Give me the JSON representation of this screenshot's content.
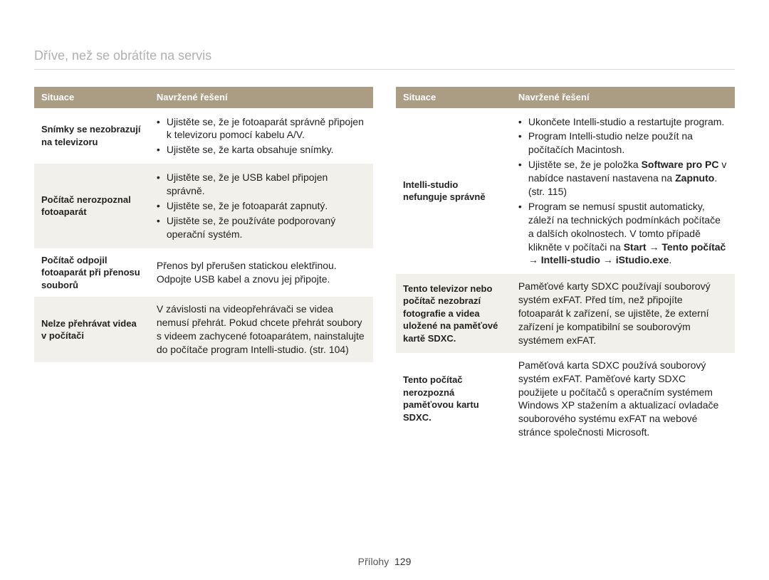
{
  "title": "Dříve, než se obrátíte na servis",
  "footer": {
    "label": "Přílohy",
    "page": "129"
  },
  "header": {
    "situation": "Situace",
    "solution": "Navržené řešení"
  },
  "left": {
    "rows": [
      {
        "situation": "Snímky se nezobrazují na televizoru",
        "type": "list",
        "items": [
          "Ujistěte se, že je fotoaparát správně připojen k televizoru pomocí kabelu A/V.",
          "Ujistěte se, že karta obsahuje snímky."
        ]
      },
      {
        "situation": "Počítač nerozpoznal fotoaparát",
        "type": "list",
        "items": [
          "Ujistěte se, že je USB kabel připojen správně.",
          "Ujistěte se, že je fotoaparát zapnutý.",
          "Ujistěte se, že používáte podporovaný operační systém."
        ]
      },
      {
        "situation": "Počítač odpojil fotoaparát při přenosu souborů",
        "type": "text",
        "text": "Přenos byl přerušen statickou elektřinou. Odpojte USB kabel a znovu jej připojte."
      },
      {
        "situation": "Nelze přehrávat videa v počítači",
        "type": "text",
        "text": "V závislosti na videopřehrávači se videa nemusí přehrát. Pokud chcete přehrát soubory s videem zachycené fotoaparátem, nainstalujte do počítače program Intelli-studio. (str. 104)"
      }
    ]
  },
  "right": {
    "rows": [
      {
        "situation": "Intelli-studio nefunguje správně",
        "type": "list-html",
        "items": [
          "Ukončete Intelli-studio a restartujte program.",
          "Program Intelli-studio nelze použít na počítačích Macintosh.",
          "Ujistěte se, že je položka <b>Software pro PC</b> v nabídce nastavení nastavena na <b>Zapnuto</b>. (str. 115)",
          "Program se nemusí spustit automaticky, záleží na technických podmínkách počítače a dalších okolnostech. V tomto případě klikněte v počítači na <b>Start</b> → <b>Tento počítač</b> → <b>Intelli-studio</b> → <b>iStudio.exe</b>."
        ]
      },
      {
        "situation": "Tento televizor nebo počítač nezobrazí fotografie a videa uložené na paměťové kartě SDXC.",
        "type": "text",
        "text": "Paměťové karty SDXC používají souborový systém exFAT. Před tím, než připojíte fotoaparát k zařízení, se ujistěte, že externí zařízení je kompatibilní se souborovým systémem exFAT."
      },
      {
        "situation": "Tento počítač nerozpozná paměťovou kartu SDXC.",
        "type": "text",
        "text": "Paměťová karta SDXC používá souborový systém exFAT. Paměťové karty SDXC použijete u počítačů s operačním systémem Windows XP stažením a aktualizací ovladače souborového systému exFAT na webové stránce společnosti Microsoft."
      }
    ]
  }
}
